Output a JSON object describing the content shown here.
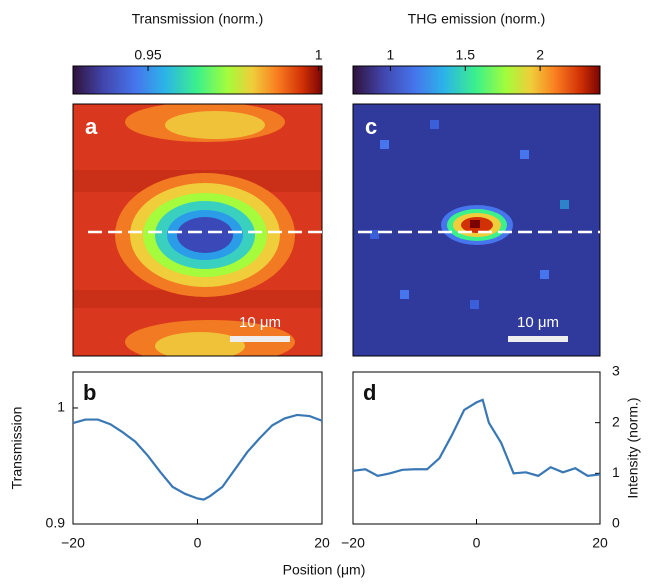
{
  "figure": {
    "xlabel": "Position (μm)"
  },
  "chart_data": [
    {
      "type": "heatmap",
      "panel_label": "a",
      "scalebar_label": "10 μm",
      "colorbar": {
        "label": "Transmission (norm.)",
        "xlim": [
          0.928,
          1.001
        ],
        "xticks": [
          0.95,
          1
        ]
      }
    },
    {
      "type": "heatmap",
      "panel_label": "c",
      "scalebar_label": "10 μm",
      "colorbar": {
        "label": "THG emission (norm.)",
        "xlim": [
          0.75,
          2.4
        ],
        "xticks": [
          1,
          1.5,
          2
        ]
      }
    },
    {
      "type": "line",
      "panel_label": "b",
      "ylabel": "Transmission",
      "color": "#3a78b5",
      "x": [
        -20,
        -18,
        -16,
        -14,
        -12,
        -10,
        -8,
        -6,
        -4,
        -2,
        0,
        1,
        2,
        4,
        6,
        8,
        10,
        12,
        14,
        16,
        18,
        20
      ],
      "values": [
        0.987,
        0.99,
        0.99,
        0.986,
        0.979,
        0.971,
        0.959,
        0.945,
        0.932,
        0.926,
        0.922,
        0.921,
        0.924,
        0.932,
        0.947,
        0.962,
        0.974,
        0.985,
        0.991,
        0.994,
        0.993,
        0.989
      ],
      "xlim": [
        -20,
        20
      ],
      "xticks": [
        {
          "value": -20,
          "label": "−20"
        },
        0,
        20
      ],
      "ylim": [
        0.9,
        1.031
      ],
      "yticks": [
        0.9,
        1
      ]
    },
    {
      "type": "line",
      "panel_label": "d",
      "ylabel": "Intensity (norm.)",
      "color": "#3a78b5",
      "y_axis_side": "right",
      "x": [
        -20,
        -18,
        -16,
        -14,
        -12,
        -10,
        -8,
        -6,
        -4,
        -2,
        0,
        1,
        2,
        4,
        6,
        8,
        10,
        12,
        14,
        16,
        18,
        20
      ],
      "values": [
        1.05,
        1.08,
        0.95,
        1.0,
        1.07,
        1.08,
        1.08,
        1.3,
        1.75,
        2.25,
        2.4,
        2.45,
        2.0,
        1.6,
        1.0,
        1.02,
        0.95,
        1.12,
        1.02,
        1.1,
        0.95,
        0.98
      ],
      "xlim": [
        -20,
        20
      ],
      "xticks": [
        {
          "value": -20,
          "label": "−20"
        },
        0,
        20
      ],
      "ylim": [
        0,
        3
      ],
      "yticks": [
        0,
        1,
        2,
        3
      ]
    }
  ]
}
